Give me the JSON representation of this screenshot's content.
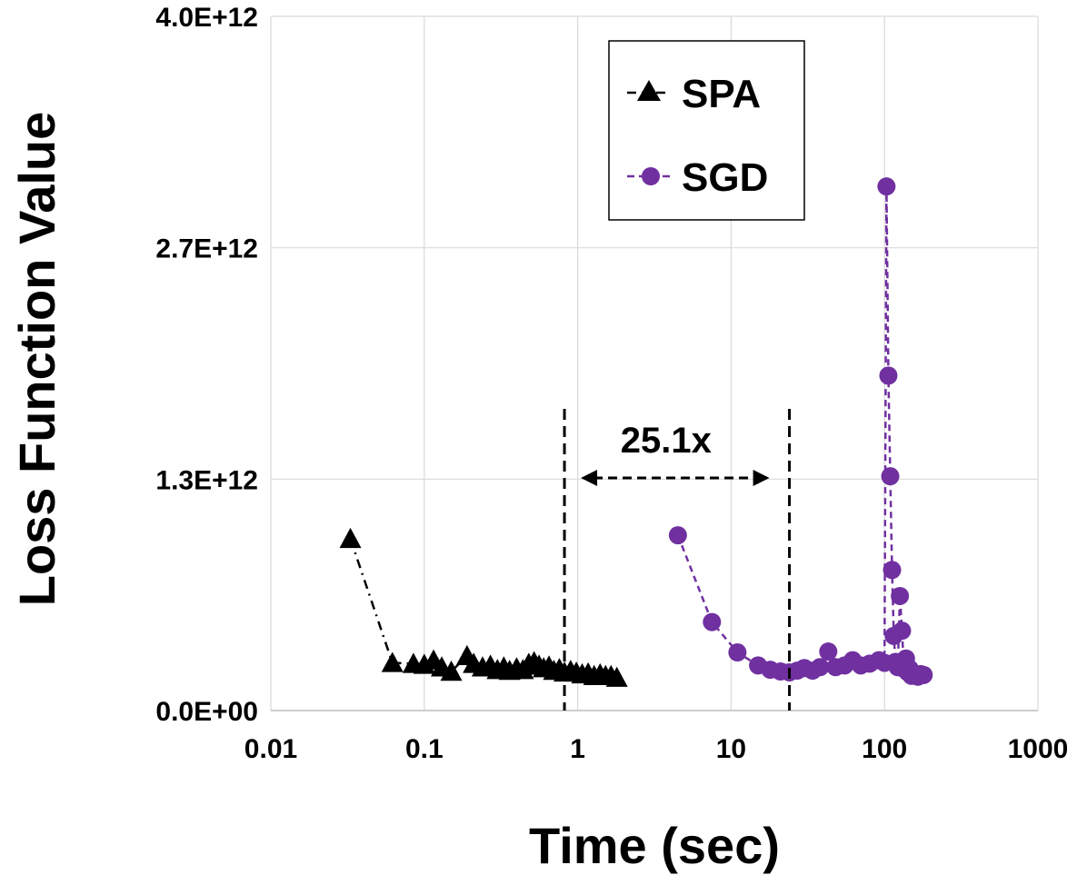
{
  "chart_data": {
    "type": "scatter",
    "title": "",
    "xlabel": "Time (sec)",
    "ylabel": "Loss Function Value",
    "xscale": "log",
    "xlim": [
      0.01,
      1000
    ],
    "ylim": [
      0,
      4000000000000.0
    ],
    "grid": true,
    "x_tick_labels": [
      "0.01",
      "0.1",
      "1",
      "10",
      "100",
      "1000"
    ],
    "y_tick_labels": [
      "0.0E+00",
      "1.3E+12",
      "2.7E+12",
      "4.0E+12"
    ],
    "legend_position": "top-center",
    "series": [
      {
        "name": "SPA",
        "marker": "triangle",
        "line": "dash-dot",
        "color": "#000000",
        "x": [
          0.033,
          0.062,
          0.085,
          0.1,
          0.115,
          0.13,
          0.15,
          0.19,
          0.21,
          0.24,
          0.27,
          0.3,
          0.33,
          0.36,
          0.4,
          0.44,
          0.48,
          0.52,
          0.56,
          0.6,
          0.65,
          0.7,
          0.76,
          0.82,
          0.9,
          0.98,
          1.07,
          1.17,
          1.28,
          1.4,
          1.52,
          1.65,
          1.8
        ],
        "y": [
          990000000000.0,
          275000000000.0,
          270000000000.0,
          265000000000.0,
          290000000000.0,
          250000000000.0,
          225000000000.0,
          315000000000.0,
          270000000000.0,
          250000000000.0,
          260000000000.0,
          235000000000.0,
          250000000000.0,
          230000000000.0,
          245000000000.0,
          235000000000.0,
          270000000000.0,
          280000000000.0,
          260000000000.0,
          245000000000.0,
          255000000000.0,
          230000000000.0,
          240000000000.0,
          220000000000.0,
          230000000000.0,
          220000000000.0,
          210000000000.0,
          215000000000.0,
          200000000000.0,
          210000000000.0,
          200000000000.0,
          200000000000.0,
          190000000000.0
        ]
      },
      {
        "name": "SGD",
        "marker": "circle",
        "line": "dashed",
        "color": "#7030a0",
        "x": [
          4.5,
          7.5,
          11,
          15,
          18,
          21,
          24,
          27,
          30,
          34,
          38,
          43,
          48,
          55,
          62,
          70,
          80,
          92,
          100,
          103,
          106,
          109,
          112,
          115,
          118,
          122,
          126,
          130,
          134,
          138,
          142,
          146,
          150,
          158,
          165,
          172,
          180
        ],
        "y": [
          1010000000000.0,
          510000000000.0,
          335000000000.0,
          260000000000.0,
          235000000000.0,
          225000000000.0,
          220000000000.0,
          230000000000.0,
          245000000000.0,
          230000000000.0,
          250000000000.0,
          340000000000.0,
          250000000000.0,
          260000000000.0,
          290000000000.0,
          260000000000.0,
          270000000000.0,
          290000000000.0,
          275000000000.0,
          3020000000000.0,
          1930000000000.0,
          1350000000000.0,
          810000000000.0,
          430000000000.0,
          280000000000.0,
          250000000000.0,
          660000000000.0,
          460000000000.0,
          240000000000.0,
          300000000000.0,
          220000000000.0,
          240000000000.0,
          200000000000.0,
          210000000000.0,
          195000000000.0,
          210000000000.0,
          205000000000.0
        ]
      }
    ],
    "annotations": [
      {
        "text": "25.1x",
        "type": "speedup-arrow",
        "x_from": 0.82,
        "x_to": 24
      }
    ]
  }
}
